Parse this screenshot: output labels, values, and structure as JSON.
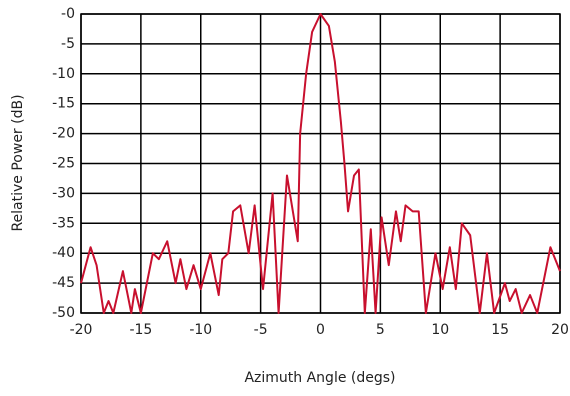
{
  "chart_data": {
    "type": "line",
    "xlabel": "Azimuth Angle (degs)",
    "ylabel": "Relative Power (dB)",
    "color": "#c8102e",
    "grid": true,
    "xlim": [
      -20,
      20
    ],
    "ylim": [
      -50,
      0
    ],
    "xticks": [
      -20,
      -15,
      -10,
      -5,
      0,
      5,
      10,
      15,
      20
    ],
    "yticks": [
      {
        "value": 0,
        "label": "-0"
      },
      -5,
      -10,
      -15,
      -20,
      -25,
      -30,
      -35,
      -40,
      -45,
      -50
    ],
    "x": [
      -20,
      -19.2,
      -18.7,
      -18.1,
      -17.7,
      -17.3,
      -16.5,
      -15.8,
      -15.5,
      -15,
      -14,
      -13.5,
      -12.8,
      -12.1,
      -11.7,
      -11.2,
      -10.6,
      -10,
      -9.2,
      -8.5,
      -8.2,
      -7.7,
      -7.3,
      -6.7,
      -6,
      -5.5,
      -4.8,
      -4,
      -3.5,
      -2.8,
      -1.9,
      -1.7,
      -1.2,
      -0.7,
      0,
      0.7,
      1.2,
      1.7,
      2,
      2.3,
      2.8,
      3.2,
      3.7,
      4.2,
      4.6,
      5.1,
      5.7,
      6.3,
      6.7,
      7.1,
      7.7,
      8.2,
      8.8,
      9.6,
      10.2,
      10.8,
      11.3,
      11.8,
      12.5,
      13.3,
      13.9,
      14.5,
      15.4,
      15.8,
      16.3,
      16.8,
      17.5,
      18.1,
      19.2,
      20
    ],
    "values": [
      -45,
      -39,
      -42,
      -50,
      -48,
      -50,
      -43,
      -50,
      -46,
      -50,
      -40,
      -41,
      -38,
      -45,
      -41,
      -46,
      -42,
      -46,
      -40,
      -47,
      -41,
      -40,
      -33,
      -32,
      -40,
      -32,
      -46,
      -30,
      -50,
      -27,
      -38,
      -20,
      -10,
      -3,
      0,
      -2,
      -8,
      -18,
      -25,
      -33,
      -27,
      -26,
      -50,
      -36,
      -50,
      -34,
      -42,
      -33,
      -38,
      -32,
      -33,
      -33,
      -50,
      -40,
      -46,
      -39,
      -46,
      -35,
      -37,
      -50,
      -40,
      -50,
      -45,
      -48,
      -46,
      -50,
      -47,
      -50,
      -39,
      -43
    ]
  }
}
